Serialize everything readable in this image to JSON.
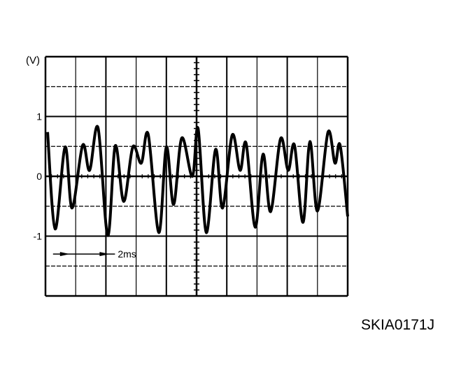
{
  "chart_data": {
    "type": "line",
    "title": "",
    "ylabel": "(V)",
    "xlabel": "",
    "y_tick_labels": [
      "1",
      "0",
      "-1"
    ],
    "y_ticks": [
      1,
      0,
      -1
    ],
    "ylim": [
      -2,
      2
    ],
    "xlim": [
      0,
      10
    ],
    "x_unit": "ms",
    "grid": true,
    "x_divisions": 10,
    "y_divisions": 8,
    "annotation": {
      "text": "2ms",
      "from": 0.25,
      "to": 2.3,
      "y": -1.3
    },
    "line_color": "#000000",
    "series": [
      {
        "x": [
          0.07,
          0.32,
          0.65,
          0.88,
          1.23,
          1.46,
          1.74,
          2.06,
          2.31,
          2.59,
          2.89,
          3.17,
          3.4,
          3.75,
          4.0,
          4.24,
          4.51,
          4.86,
          5.05,
          5.32,
          5.63,
          5.86,
          6.18,
          6.44,
          6.64,
          6.94,
          7.2,
          7.45,
          7.78,
          8.03,
          8.24,
          8.52,
          8.75,
          9.0,
          9.35,
          9.58,
          9.75,
          10.0
        ],
        "y": [
          0.74,
          -0.88,
          0.49,
          -0.53,
          0.52,
          0.1,
          0.81,
          -0.99,
          0.51,
          -0.42,
          0.49,
          0.22,
          0.7,
          -0.94,
          0.49,
          -0.47,
          0.64,
          0.0,
          0.8,
          -0.94,
          0.45,
          -0.53,
          0.69,
          0.1,
          0.55,
          -0.85,
          0.37,
          -0.59,
          0.63,
          0.1,
          0.52,
          -0.77,
          0.58,
          -0.58,
          0.74,
          0.22,
          0.52,
          -0.67
        ]
      }
    ]
  },
  "figure_code": "SKIA0171J"
}
